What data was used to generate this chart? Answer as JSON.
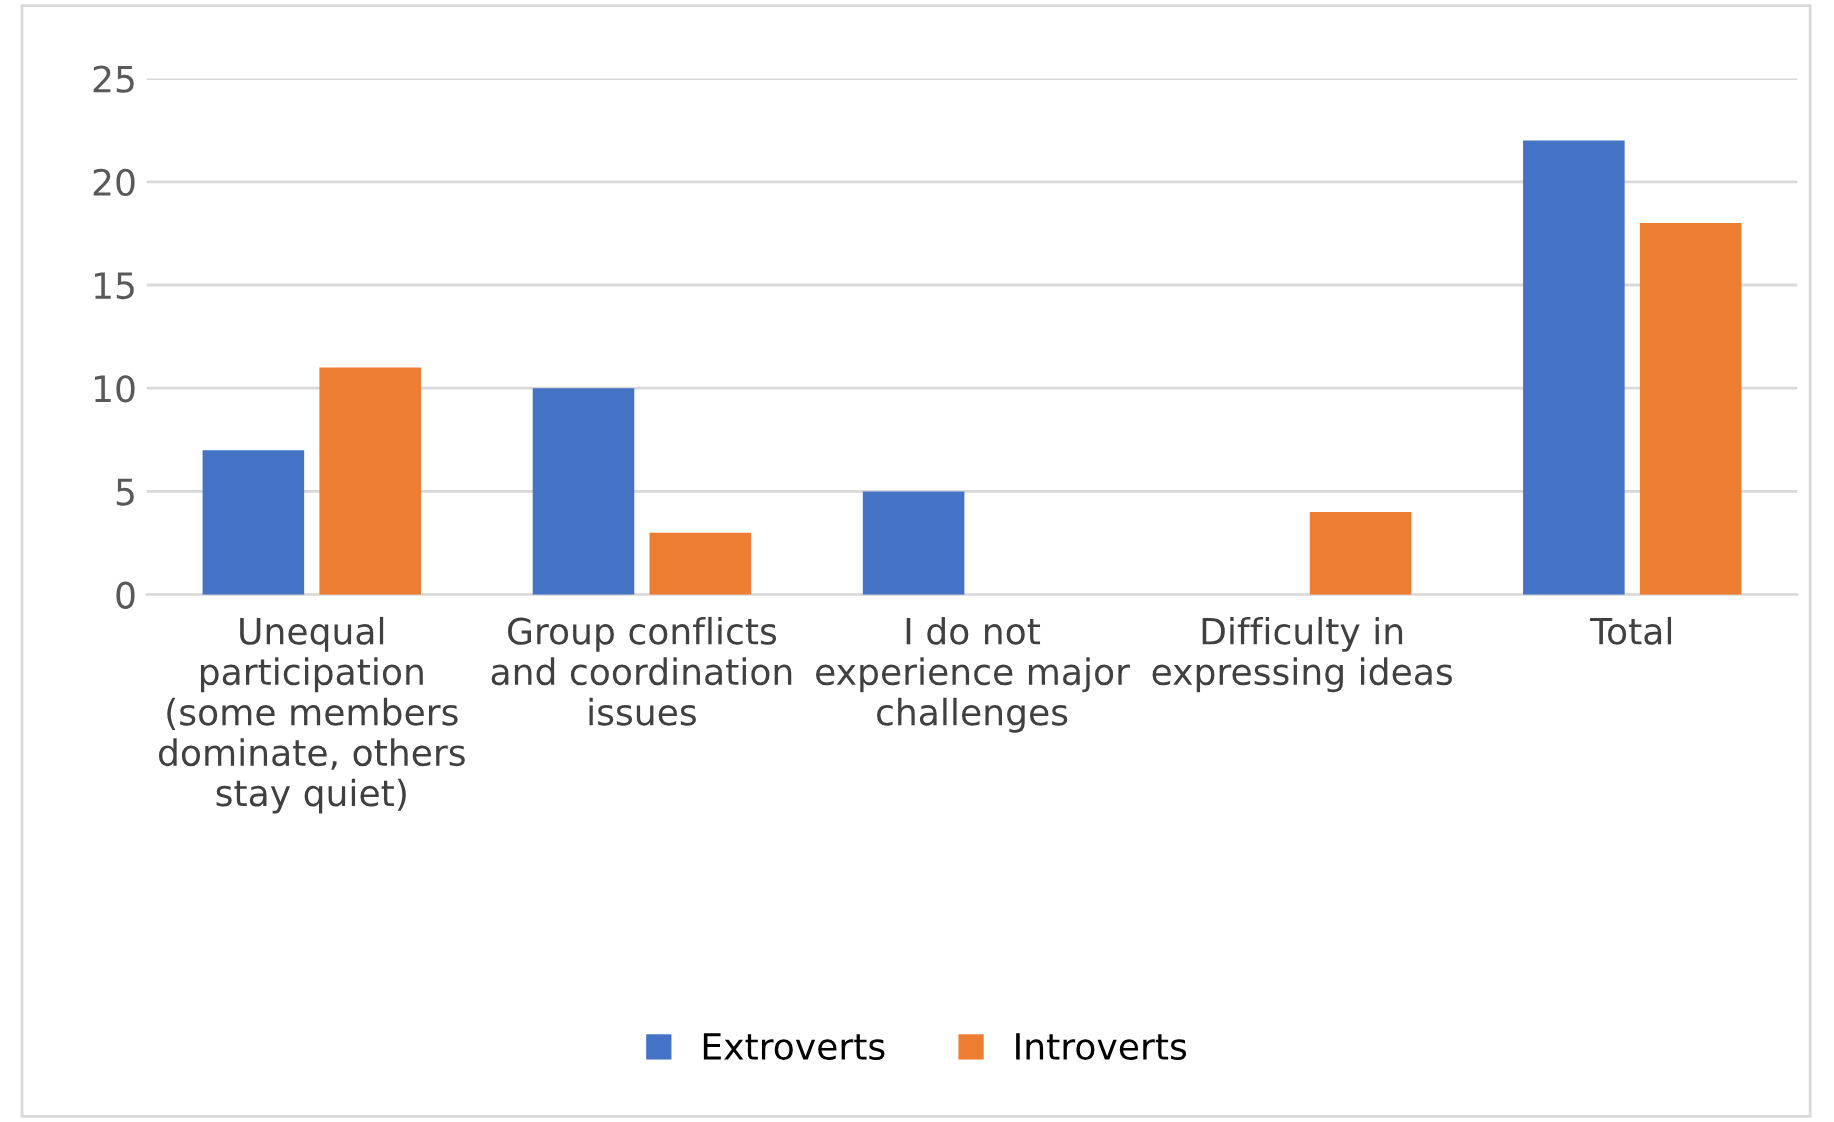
{
  "chart_data": {
    "type": "bar",
    "categories": [
      "Unequal participation (some members dominate, others stay quiet)",
      "Group conflicts and coordination issues",
      "I do not experience major challenges",
      "Difficulty in expressing ideas",
      "Total"
    ],
    "series": [
      {
        "name": "Extroverts",
        "color": "#4472c4",
        "values": [
          7,
          10,
          5,
          0,
          22
        ]
      },
      {
        "name": "Introverts",
        "color": "#ed7d31",
        "values": [
          11,
          3,
          0,
          4,
          18
        ]
      }
    ],
    "ylim": [
      0,
      25
    ],
    "yticks": [
      0,
      5,
      10,
      15,
      20,
      25
    ],
    "grid": "y",
    "legend": "bottom"
  }
}
